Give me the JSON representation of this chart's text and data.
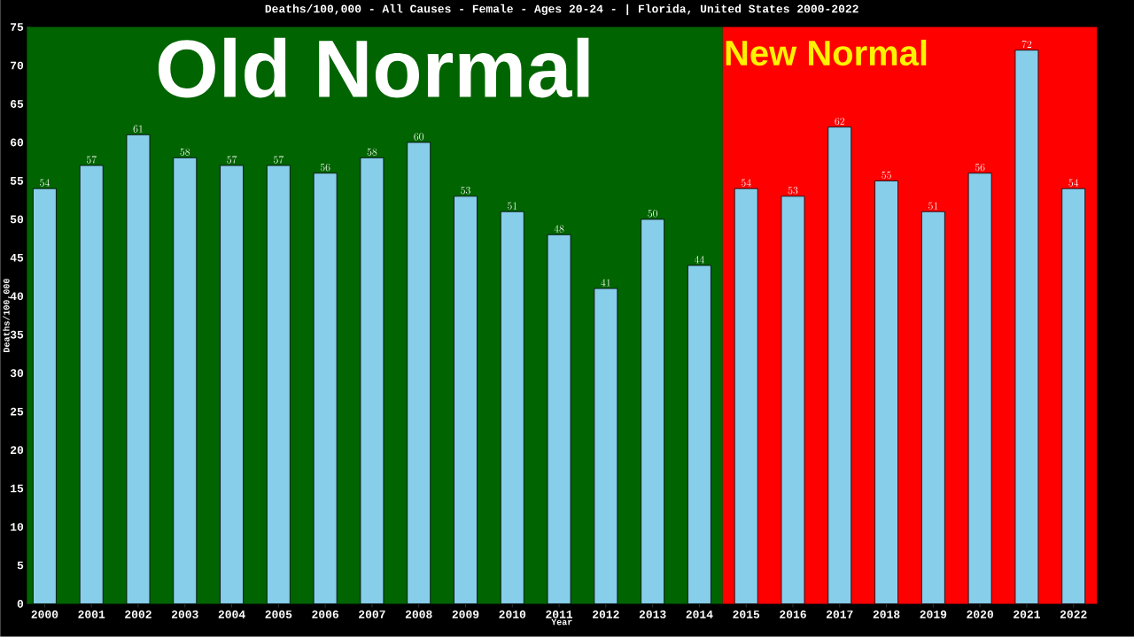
{
  "chart_data": {
    "type": "bar",
    "title": "Deaths/100,000 - All Causes - Female - Ages 20-24 -  | Florida, United States 2000-2022",
    "xlabel": "Year",
    "ylabel": "Deaths/100,000",
    "categories": [
      "2000",
      "2001",
      "2002",
      "2003",
      "2004",
      "2005",
      "2006",
      "2007",
      "2008",
      "2009",
      "2010",
      "2011",
      "2012",
      "2013",
      "2014",
      "2015",
      "2016",
      "2017",
      "2018",
      "2019",
      "2020",
      "2021",
      "2022"
    ],
    "values": [
      54,
      57,
      61,
      58,
      57,
      57,
      56,
      58,
      60,
      53,
      51,
      48,
      41,
      50,
      44,
      54,
      53,
      62,
      55,
      51,
      56,
      72,
      54
    ],
    "color": "#87ceeb",
    "ylim": [
      0,
      75
    ],
    "yticks": [
      0,
      5,
      10,
      15,
      20,
      25,
      30,
      35,
      40,
      45,
      50,
      55,
      60,
      65,
      70,
      75
    ],
    "data_labels": true,
    "bands": [
      {
        "axis": "x",
        "from": "2000",
        "to": "2014",
        "label": "Old Normal",
        "color": "#006400"
      },
      {
        "axis": "x",
        "from": "2015",
        "to": "2022",
        "label": "New Normal",
        "color": "#ff0000"
      }
    ]
  }
}
